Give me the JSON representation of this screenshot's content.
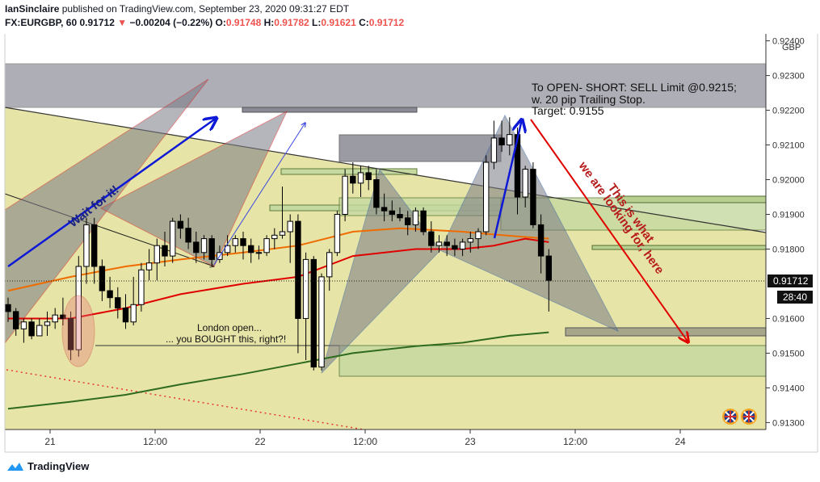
{
  "header": {
    "author": "IanSinclaire",
    "published_text": "published on TradingView.com, September 23, 2020 09:31:27 EDT",
    "symbol": "FX:EURGBP, 60",
    "last": "0.91712",
    "change": "−0.00204 (−0.22%)",
    "o_label": "O:",
    "o_value": "0.91748",
    "h_label": "H:",
    "h_value": "0.91782",
    "l_label": "L:",
    "l_value": "0.91621",
    "c_label": "C:",
    "c_value": "0.91712"
  },
  "footer": {
    "brand": "TradingView"
  },
  "chart_data": {
    "type": "candlestick",
    "symbol": "FX:EURGBP",
    "interval": "60",
    "y_currency_label": "GBP",
    "ylim": [
      0.9128,
      0.9242
    ],
    "y_ticks": [
      "0.92400",
      "0.92300",
      "0.92200",
      "0.92100",
      "0.92000",
      "0.91900",
      "0.91800",
      "0.91600",
      "0.91500",
      "0.91400",
      "0.91300"
    ],
    "x_ticks": [
      "21",
      "12:00",
      "22",
      "12:00",
      "23",
      "12:00",
      "24"
    ],
    "last_price_label": "0.91712",
    "countdown_label": "28:40",
    "colors": {
      "up": "#ffffff",
      "down": "#000000",
      "ma_red": "#e00000",
      "ma_orange": "#ef6c00",
      "ma_green": "#2e6b1e",
      "annotation_blue": "#0d19d6",
      "annotation_red": "#d20000",
      "pattern_fill": "#7a7a86"
    },
    "candles": [
      {
        "o": 0.9164,
        "h": 0.9166,
        "l": 0.9159,
        "c": 0.9162
      },
      {
        "o": 0.9162,
        "h": 0.9163,
        "l": 0.9155,
        "c": 0.9157
      },
      {
        "o": 0.9157,
        "h": 0.916,
        "l": 0.9153,
        "c": 0.9159
      },
      {
        "o": 0.9159,
        "h": 0.916,
        "l": 0.9154,
        "c": 0.9155
      },
      {
        "o": 0.9155,
        "h": 0.916,
        "l": 0.9155,
        "c": 0.9158
      },
      {
        "o": 0.9158,
        "h": 0.9162,
        "l": 0.9155,
        "c": 0.9159
      },
      {
        "o": 0.9159,
        "h": 0.9163,
        "l": 0.9157,
        "c": 0.9161
      },
      {
        "o": 0.9161,
        "h": 0.9166,
        "l": 0.9158,
        "c": 0.916
      },
      {
        "o": 0.916,
        "h": 0.9162,
        "l": 0.9148,
        "c": 0.9151
      },
      {
        "o": 0.9151,
        "h": 0.9178,
        "l": 0.9149,
        "c": 0.9175
      },
      {
        "o": 0.9175,
        "h": 0.9189,
        "l": 0.917,
        "c": 0.9187
      },
      {
        "o": 0.9187,
        "h": 0.9189,
        "l": 0.917,
        "c": 0.9175
      },
      {
        "o": 0.9175,
        "h": 0.9177,
        "l": 0.9165,
        "c": 0.9168
      },
      {
        "o": 0.9168,
        "h": 0.9172,
        "l": 0.9163,
        "c": 0.9166
      },
      {
        "o": 0.9166,
        "h": 0.9169,
        "l": 0.916,
        "c": 0.9163
      },
      {
        "o": 0.9163,
        "h": 0.9167,
        "l": 0.9157,
        "c": 0.9159
      },
      {
        "o": 0.9159,
        "h": 0.9172,
        "l": 0.9158,
        "c": 0.9164
      },
      {
        "o": 0.9164,
        "h": 0.9176,
        "l": 0.9162,
        "c": 0.9174
      },
      {
        "o": 0.9174,
        "h": 0.918,
        "l": 0.9171,
        "c": 0.9176
      },
      {
        "o": 0.9176,
        "h": 0.9183,
        "l": 0.9171,
        "c": 0.9181
      },
      {
        "o": 0.9181,
        "h": 0.9185,
        "l": 0.9175,
        "c": 0.9178
      },
      {
        "o": 0.9178,
        "h": 0.9189,
        "l": 0.9176,
        "c": 0.9188
      },
      {
        "o": 0.9188,
        "h": 0.919,
        "l": 0.9183,
        "c": 0.9186
      },
      {
        "o": 0.9186,
        "h": 0.9189,
        "l": 0.918,
        "c": 0.9182
      },
      {
        "o": 0.9182,
        "h": 0.9185,
        "l": 0.9176,
        "c": 0.9179
      },
      {
        "o": 0.9179,
        "h": 0.9184,
        "l": 0.9177,
        "c": 0.9183
      },
      {
        "o": 0.9183,
        "h": 0.9184,
        "l": 0.9175,
        "c": 0.9177
      },
      {
        "o": 0.9177,
        "h": 0.9181,
        "l": 0.9176,
        "c": 0.9179
      },
      {
        "o": 0.9179,
        "h": 0.9184,
        "l": 0.9178,
        "c": 0.9181
      },
      {
        "o": 0.9181,
        "h": 0.9184,
        "l": 0.9179,
        "c": 0.9183
      },
      {
        "o": 0.9183,
        "h": 0.9185,
        "l": 0.9177,
        "c": 0.9181
      },
      {
        "o": 0.9181,
        "h": 0.9183,
        "l": 0.9176,
        "c": 0.9179
      },
      {
        "o": 0.9179,
        "h": 0.9181,
        "l": 0.9177,
        "c": 0.9179
      },
      {
        "o": 0.9179,
        "h": 0.9184,
        "l": 0.9178,
        "c": 0.9183
      },
      {
        "o": 0.9183,
        "h": 0.9186,
        "l": 0.918,
        "c": 0.9184
      },
      {
        "o": 0.9184,
        "h": 0.9198,
        "l": 0.9183,
        "c": 0.9185
      },
      {
        "o": 0.9185,
        "h": 0.919,
        "l": 0.9176,
        "c": 0.9188
      },
      {
        "o": 0.9188,
        "h": 0.919,
        "l": 0.915,
        "c": 0.916
      },
      {
        "o": 0.916,
        "h": 0.9179,
        "l": 0.9148,
        "c": 0.9177
      },
      {
        "o": 0.9177,
        "h": 0.9178,
        "l": 0.9145,
        "c": 0.9146
      },
      {
        "o": 0.9146,
        "h": 0.9173,
        "l": 0.9145,
        "c": 0.9172
      },
      {
        "o": 0.9172,
        "h": 0.918,
        "l": 0.9168,
        "c": 0.9179
      },
      {
        "o": 0.9179,
        "h": 0.9191,
        "l": 0.9178,
        "c": 0.919
      },
      {
        "o": 0.919,
        "h": 0.9203,
        "l": 0.9188,
        "c": 0.9201
      },
      {
        "o": 0.9201,
        "h": 0.9205,
        "l": 0.9196,
        "c": 0.9199
      },
      {
        "o": 0.9199,
        "h": 0.9204,
        "l": 0.9195,
        "c": 0.9202
      },
      {
        "o": 0.9202,
        "h": 0.9204,
        "l": 0.9197,
        "c": 0.92
      },
      {
        "o": 0.92,
        "h": 0.9203,
        "l": 0.919,
        "c": 0.9192
      },
      {
        "o": 0.9192,
        "h": 0.9196,
        "l": 0.9188,
        "c": 0.9191
      },
      {
        "o": 0.9191,
        "h": 0.9194,
        "l": 0.9188,
        "c": 0.919
      },
      {
        "o": 0.919,
        "h": 0.9192,
        "l": 0.9188,
        "c": 0.9189
      },
      {
        "o": 0.9189,
        "h": 0.9191,
        "l": 0.9184,
        "c": 0.9187
      },
      {
        "o": 0.9187,
        "h": 0.9192,
        "l": 0.9185,
        "c": 0.9191
      },
      {
        "o": 0.9191,
        "h": 0.9192,
        "l": 0.9184,
        "c": 0.9185
      },
      {
        "o": 0.9185,
        "h": 0.9188,
        "l": 0.9179,
        "c": 0.9181
      },
      {
        "o": 0.9181,
        "h": 0.9184,
        "l": 0.9179,
        "c": 0.9182
      },
      {
        "o": 0.9182,
        "h": 0.9184,
        "l": 0.9178,
        "c": 0.9181
      },
      {
        "o": 0.9181,
        "h": 0.9183,
        "l": 0.9178,
        "c": 0.918
      },
      {
        "o": 0.918,
        "h": 0.9183,
        "l": 0.9178,
        "c": 0.9182
      },
      {
        "o": 0.9182,
        "h": 0.9185,
        "l": 0.9179,
        "c": 0.9183
      },
      {
        "o": 0.9183,
        "h": 0.9186,
        "l": 0.918,
        "c": 0.9185
      },
      {
        "o": 0.9185,
        "h": 0.9207,
        "l": 0.9184,
        "c": 0.9205
      },
      {
        "o": 0.9205,
        "h": 0.9217,
        "l": 0.9203,
        "c": 0.9212
      },
      {
        "o": 0.9212,
        "h": 0.9217,
        "l": 0.9208,
        "c": 0.921
      },
      {
        "o": 0.921,
        "h": 0.9218,
        "l": 0.9207,
        "c": 0.9213
      },
      {
        "o": 0.9213,
        "h": 0.9215,
        "l": 0.919,
        "c": 0.9195
      },
      {
        "o": 0.9195,
        "h": 0.9204,
        "l": 0.9192,
        "c": 0.9203
      },
      {
        "o": 0.9203,
        "h": 0.9205,
        "l": 0.9186,
        "c": 0.9187
      },
      {
        "o": 0.9187,
        "h": 0.919,
        "l": 0.9173,
        "c": 0.9178
      },
      {
        "o": 0.9178,
        "h": 0.918,
        "l": 0.9162,
        "c": 0.9171
      }
    ],
    "moving_averages": [
      {
        "name": "red",
        "points": [
          [
            0,
            0.916
          ],
          [
            8,
            0.916
          ],
          [
            15,
            0.9163
          ],
          [
            22,
            0.9167
          ],
          [
            30,
            0.917
          ],
          [
            37,
            0.9172
          ],
          [
            44,
            0.9178
          ],
          [
            52,
            0.918
          ],
          [
            58,
            0.918
          ],
          [
            62,
            0.9181
          ],
          [
            66,
            0.9183
          ],
          [
            69,
            0.9182
          ]
        ]
      },
      {
        "name": "orange",
        "points": [
          [
            0,
            0.9168
          ],
          [
            8,
            0.9172
          ],
          [
            15,
            0.9175
          ],
          [
            22,
            0.9177
          ],
          [
            30,
            0.9179
          ],
          [
            37,
            0.9181
          ],
          [
            44,
            0.9185
          ],
          [
            50,
            0.9186
          ],
          [
            58,
            0.9185
          ],
          [
            63,
            0.9184
          ],
          [
            69,
            0.9183
          ]
        ]
      },
      {
        "name": "green",
        "points": [
          [
            0,
            0.9134
          ],
          [
            8,
            0.9136
          ],
          [
            15,
            0.9138
          ],
          [
            22,
            0.9141
          ],
          [
            30,
            0.9144
          ],
          [
            37,
            0.9147
          ],
          [
            44,
            0.915
          ],
          [
            52,
            0.9152
          ],
          [
            58,
            0.9153
          ],
          [
            64,
            0.9155
          ],
          [
            69,
            0.9156
          ]
        ]
      }
    ],
    "annotations": {
      "order_text_1": "To OPEN- SHORT: SELL Limit @0.9215;",
      "order_text_2": "w. 20 pip Trailing Stop.",
      "order_text_3": "Target: 0.9155",
      "wait_text": "Wait for it!",
      "london_text_1": "London open...",
      "london_text_2": "... you BOUGHT this, right?!",
      "looking_text_1": "This is what",
      "looking_text_2": "we are looking for, here"
    }
  }
}
